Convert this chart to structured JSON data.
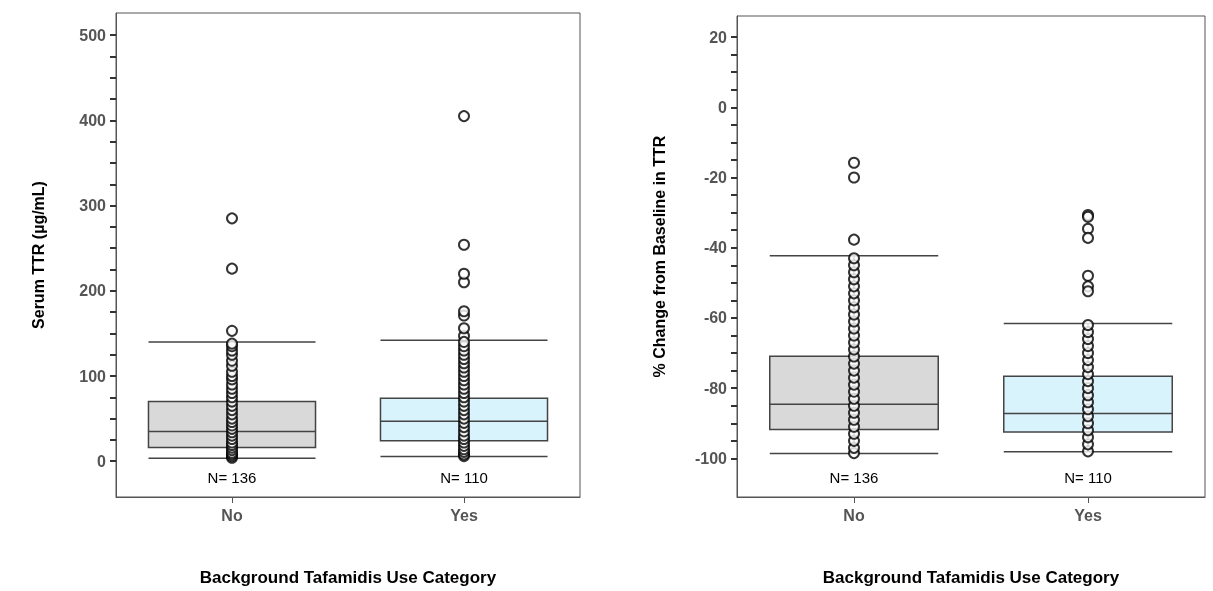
{
  "chart_data": [
    {
      "type": "box",
      "xlabel": "Background Tafamidis Use Category",
      "ylabel": "Serum TTR (µg/mL)",
      "categories": [
        "No",
        "Yes"
      ],
      "ylim": [
        -42,
        526
      ],
      "yticks": [
        0,
        {
          "value": 25,
          "label": null
        },
        {
          "value": 50,
          "label": null
        },
        {
          "value": 75,
          "label": null
        },
        100,
        {
          "value": 125,
          "label": null
        },
        {
          "value": 150,
          "label": null
        },
        {
          "value": 175,
          "label": null
        },
        200,
        {
          "value": 225,
          "label": null
        },
        {
          "value": 250,
          "label": null
        },
        {
          "value": 275,
          "label": null
        },
        300,
        {
          "value": 325,
          "label": null
        },
        {
          "value": 350,
          "label": null
        },
        {
          "value": 375,
          "label": null
        },
        400,
        {
          "value": 425,
          "label": null
        },
        {
          "value": 450,
          "label": null
        },
        {
          "value": 475,
          "label": null
        },
        500
      ],
      "series": [
        {
          "colors": [
            "#d9d9d9",
            "#d9f3fc"
          ],
          "boxes": [
            {
              "low": 3.5,
              "q1": 16,
              "median": 35,
              "q3": 70,
              "high": 140,
              "outliers": [
                153,
                226,
                285
              ]
            },
            {
              "low": 5.5,
              "q1": 24,
              "median": 47,
              "q3": 74,
              "high": 142,
              "outliers": [
                147,
                156,
                171,
                176,
                210,
                220,
                254,
                405
              ]
            }
          ]
        },
        {
          "type": "scatter",
          "color": "#000000",
          "marker": "circle",
          "x": [
            "No",
            "No",
            "No",
            "No",
            "No",
            "No",
            "No",
            "No",
            "No",
            "No",
            "No",
            "No",
            "No",
            "No",
            "No",
            "No",
            "No",
            "No",
            "No",
            "No",
            "No",
            "No",
            "No",
            "No",
            "No",
            "No",
            "No",
            "No",
            "No",
            "No",
            "No",
            "No",
            "Yes",
            "Yes",
            "Yes",
            "Yes",
            "Yes",
            "Yes",
            "Yes",
            "Yes",
            "Yes",
            "Yes",
            "Yes",
            "Yes",
            "Yes",
            "Yes",
            "Yes",
            "Yes",
            "Yes",
            "Yes",
            "Yes",
            "Yes",
            "Yes",
            "Yes",
            "Yes",
            "Yes",
            "Yes",
            "Yes",
            "Yes",
            "Yes",
            "Yes",
            "Yes"
          ],
          "values": [
            4,
            6,
            8,
            10,
            13,
            16,
            19,
            22,
            26,
            30,
            34,
            38,
            42,
            46,
            50,
            55,
            60,
            65,
            70,
            75,
            80,
            85,
            90,
            96,
            100,
            105,
            112,
            118,
            125,
            130,
            135,
            138,
            6,
            8,
            11,
            14,
            18,
            22,
            26,
            30,
            35,
            40,
            45,
            50,
            55,
            60,
            65,
            70,
            75,
            80,
            85,
            90,
            95,
            100,
            105,
            110,
            115,
            120,
            125,
            130,
            135,
            140
          ]
        }
      ],
      "annotations": [
        "N= 136",
        "N= 110"
      ],
      "grid": false
    },
    {
      "type": "box",
      "xlabel": "Background Tafamidis Use Category",
      "ylabel": "% Change from Baseline in TTR",
      "categories": [
        "No",
        "Yes"
      ],
      "ylim": [
        -111,
        26
      ],
      "yticks": [
        -100,
        {
          "value": -95,
          "label": null
        },
        {
          "value": -90,
          "label": null
        },
        {
          "value": -85,
          "label": null
        },
        -80,
        {
          "value": -75,
          "label": null
        },
        {
          "value": -70,
          "label": null
        },
        {
          "value": -65,
          "label": null
        },
        -60,
        {
          "value": -55,
          "label": null
        },
        {
          "value": -50,
          "label": null
        },
        {
          "value": -45,
          "label": null
        },
        -40,
        {
          "value": -35,
          "label": null
        },
        {
          "value": -30,
          "label": null
        },
        {
          "value": -25,
          "label": null
        },
        -20,
        {
          "value": -15,
          "label": null
        },
        {
          "value": -10,
          "label": null
        },
        {
          "value": -5,
          "label": null
        },
        0,
        {
          "value": 5,
          "label": null
        },
        {
          "value": 10,
          "label": null
        },
        {
          "value": 15,
          "label": null
        },
        20
      ],
      "series": [
        {
          "colors": [
            "#d9d9d9",
            "#d9f3fc"
          ],
          "boxes": [
            {
              "low": -98.6,
              "q1": -91.8,
              "median": -84.6,
              "q3": -70.9,
              "high": -42.3,
              "outliers": [
                -15.8,
                -20,
                -37.7
              ]
            },
            {
              "low": -98.1,
              "q1": -92.5,
              "median": -87.2,
              "q3": -76.6,
              "high": -61.6,
              "outliers": [
                -30.7,
                -31.2,
                -34.6,
                -37.2,
                -48,
                -51,
                -52.4
              ]
            }
          ]
        },
        {
          "type": "scatter",
          "color": "#000000",
          "marker": "circle",
          "x": [
            "No",
            "No",
            "No",
            "No",
            "No",
            "No",
            "No",
            "No",
            "No",
            "No",
            "No",
            "No",
            "No",
            "No",
            "No",
            "No",
            "No",
            "No",
            "No",
            "No",
            "No",
            "No",
            "No",
            "No",
            "No",
            "No",
            "No",
            "No",
            "No",
            "Yes",
            "Yes",
            "Yes",
            "Yes",
            "Yes",
            "Yes",
            "Yes",
            "Yes",
            "Yes",
            "Yes",
            "Yes",
            "Yes",
            "Yes",
            "Yes",
            "Yes",
            "Yes",
            "Yes",
            "Yes",
            "Yes"
          ],
          "values": [
            -98.5,
            -97,
            -95,
            -93,
            -91,
            -89,
            -87,
            -85,
            -83,
            -81,
            -79,
            -77,
            -75,
            -73,
            -71,
            -69,
            -67,
            -65,
            -63,
            -61,
            -59,
            -57,
            -55,
            -53,
            -51,
            -49,
            -47,
            -45,
            -43,
            -98,
            -96,
            -94,
            -92,
            -90,
            -88,
            -86,
            -84,
            -82,
            -80,
            -78,
            -76,
            -74,
            -72,
            -70,
            -68,
            -66,
            -64,
            -62
          ]
        }
      ],
      "annotations": [
        "N= 136",
        "N= 110"
      ],
      "grid": false
    }
  ]
}
